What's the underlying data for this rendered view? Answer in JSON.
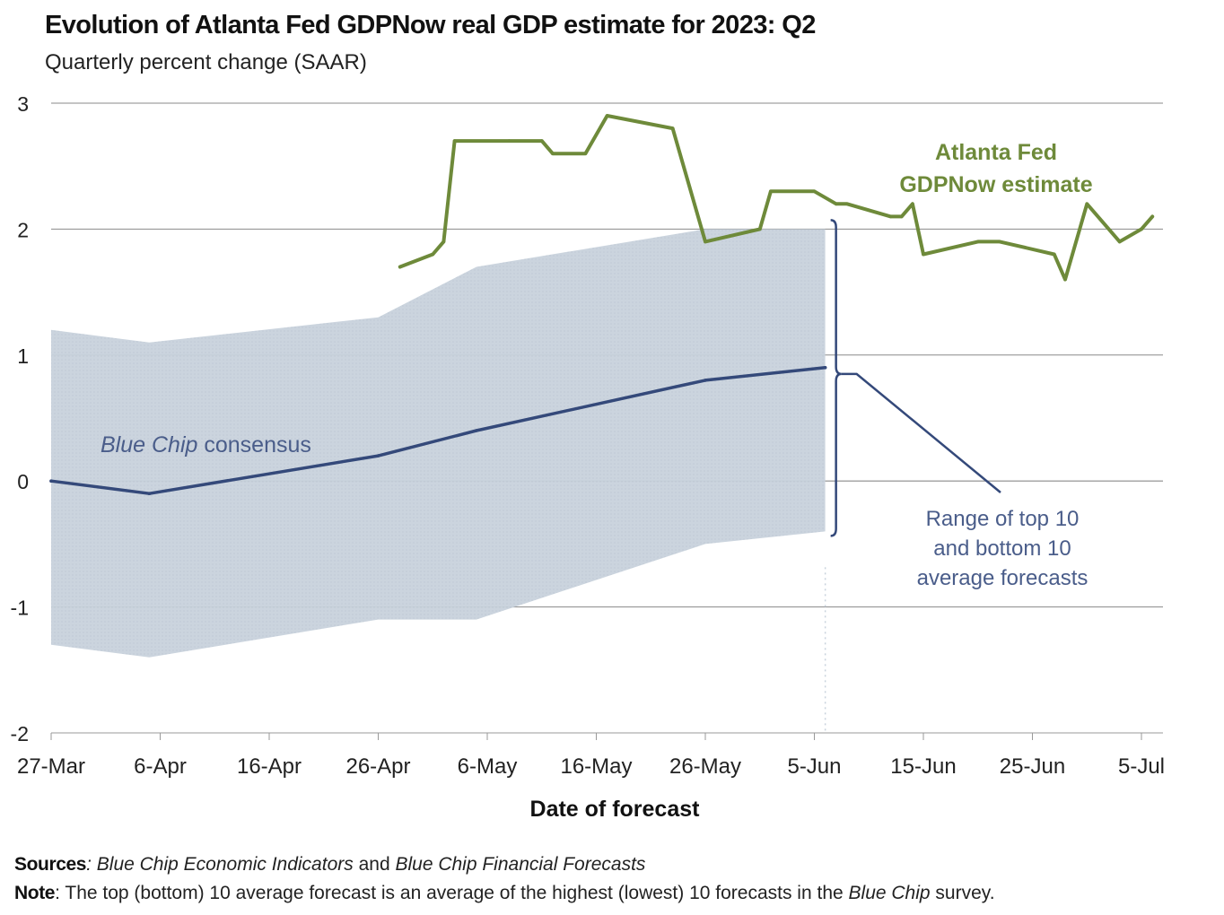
{
  "chart_data": {
    "type": "line",
    "title": "Evolution of Atlanta Fed GDPNow real GDP estimate for 2023: Q2",
    "subtitle": "Quarterly percent change (SAAR)",
    "xlabel": "Date of forecast",
    "ylabel": "",
    "ylim": [
      -2,
      3
    ],
    "yticks": [
      3,
      2,
      1,
      0,
      -1,
      -2
    ],
    "xlim": [
      "2023-03-27",
      "2023-07-05"
    ],
    "xticks": [
      {
        "date": "2023-03-27",
        "label": "27-Mar"
      },
      {
        "date": "2023-04-06",
        "label": "6-Apr"
      },
      {
        "date": "2023-04-16",
        "label": "16-Apr"
      },
      {
        "date": "2023-04-26",
        "label": "26-Apr"
      },
      {
        "date": "2023-05-06",
        "label": "6-May"
      },
      {
        "date": "2023-05-16",
        "label": "16-May"
      },
      {
        "date": "2023-05-26",
        "label": "26-May"
      },
      {
        "date": "2023-06-05",
        "label": "5-Jun"
      },
      {
        "date": "2023-06-15",
        "label": "15-Jun"
      },
      {
        "date": "2023-06-25",
        "label": "25-Jun"
      },
      {
        "date": "2023-07-05",
        "label": "5-Jul"
      }
    ],
    "grid": true,
    "series": [
      {
        "name": "Atlanta Fed GDPNow estimate",
        "label_lines": [
          "Atlanta Fed",
          "GDPNow estimate"
        ],
        "color": "#6e8a3a",
        "points": [
          [
            "2023-04-28",
            1.7
          ],
          [
            "2023-05-01",
            1.8
          ],
          [
            "2023-05-02",
            1.9
          ],
          [
            "2023-05-03",
            2.7
          ],
          [
            "2023-05-08",
            2.7
          ],
          [
            "2023-05-11",
            2.7
          ],
          [
            "2023-05-12",
            2.6
          ],
          [
            "2023-05-15",
            2.6
          ],
          [
            "2023-05-17",
            2.9
          ],
          [
            "2023-05-23",
            2.8
          ],
          [
            "2023-05-26",
            1.9
          ],
          [
            "2023-05-31",
            2.0
          ],
          [
            "2023-06-01",
            2.3
          ],
          [
            "2023-06-05",
            2.3
          ],
          [
            "2023-06-07",
            2.2
          ],
          [
            "2023-06-08",
            2.2
          ],
          [
            "2023-06-12",
            2.1
          ],
          [
            "2023-06-13",
            2.1
          ],
          [
            "2023-06-14",
            2.2
          ],
          [
            "2023-06-15",
            1.8
          ],
          [
            "2023-06-20",
            1.9
          ],
          [
            "2023-06-22",
            1.9
          ],
          [
            "2023-06-27",
            1.8
          ],
          [
            "2023-06-28",
            1.6
          ],
          [
            "2023-06-30",
            2.2
          ],
          [
            "2023-07-03",
            1.9
          ],
          [
            "2023-07-05",
            2.0
          ],
          [
            "2023-07-06",
            2.1
          ]
        ]
      },
      {
        "name": "Blue Chip consensus",
        "label_italic": "Blue Chip",
        "label_rest": " consensus",
        "color": "#34497a",
        "points": [
          [
            "2023-03-27",
            0.0
          ],
          [
            "2023-04-05",
            -0.1
          ],
          [
            "2023-04-26",
            0.2
          ],
          [
            "2023-05-05",
            0.4
          ],
          [
            "2023-05-26",
            0.8
          ],
          [
            "2023-06-06",
            0.9
          ]
        ]
      }
    ],
    "band": {
      "name": "Range of top 10 and bottom 10 average forecasts",
      "label_lines": [
        "Range of top 10",
        "and bottom 10",
        "average forecasts"
      ],
      "color": "#c6d0da",
      "upper": [
        [
          "2023-03-27",
          1.2
        ],
        [
          "2023-04-05",
          1.1
        ],
        [
          "2023-04-26",
          1.3
        ],
        [
          "2023-05-05",
          1.7
        ],
        [
          "2023-05-26",
          2.0
        ],
        [
          "2023-06-06",
          2.0
        ]
      ],
      "lower": [
        [
          "2023-03-27",
          -1.3
        ],
        [
          "2023-04-05",
          -1.4
        ],
        [
          "2023-04-26",
          -1.1
        ],
        [
          "2023-05-05",
          -1.1
        ],
        [
          "2023-05-26",
          -0.5
        ],
        [
          "2023-06-06",
          -0.4
        ]
      ]
    }
  },
  "footnotes": {
    "sources_label": "Sources",
    "sources_i1": "Blue Chip Economic Indicators",
    "sources_mid": " and ",
    "sources_i2": "Blue Chip Financial Forecasts",
    "note_label": "Note",
    "note_text1": ": The top (bottom) 10 average forecast is an average of the highest (lowest) 10 forecasts in the ",
    "note_italic": "Blue Chip",
    "note_text2": " survey."
  }
}
